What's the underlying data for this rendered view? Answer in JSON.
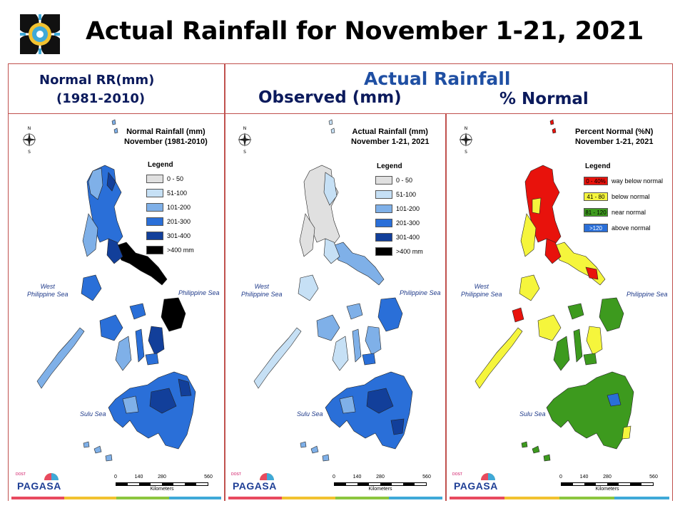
{
  "title": "Actual Rainfall for November 1-21, 2021",
  "header": {
    "normal_line1": "Normal RR(mm)",
    "normal_line2": "(1981-2010)",
    "actual": "Actual Rainfall",
    "observed": "Observed (mm)",
    "percent": "% Normal"
  },
  "panels": [
    {
      "title_line1": "Normal Rainfall (mm)",
      "title_line2": "November (1981-2010)",
      "legend_title": "Legend",
      "legend": [
        {
          "label": "0 - 50",
          "color": "#e0e0e0"
        },
        {
          "label": "51-100",
          "color": "#c6e0f5"
        },
        {
          "label": "101-200",
          "color": "#7fb0e8"
        },
        {
          "label": "201-300",
          "color": "#2a6fd8"
        },
        {
          "label": "301-400",
          "color": "#123f9a"
        },
        {
          "label": ">400 mm",
          "color": "#000000"
        }
      ],
      "sea_west_1": "West",
      "sea_west_2": "Philippine Sea",
      "sea_east": "Philippine Sea",
      "sea_south": "Sulu Sea"
    },
    {
      "title_line1": "Actual Rainfall (mm)",
      "title_line2": "November 1-21, 2021",
      "legend_title": "Legend",
      "legend": [
        {
          "label": "0 - 50",
          "color": "#e0e0e0"
        },
        {
          "label": "51-100",
          "color": "#c6e0f5"
        },
        {
          "label": "101-200",
          "color": "#7fb0e8"
        },
        {
          "label": "201-300",
          "color": "#2a6fd8"
        },
        {
          "label": "301-400",
          "color": "#123f9a"
        },
        {
          "label": ">400 mm",
          "color": "#000000"
        }
      ],
      "sea_west_1": "West",
      "sea_west_2": "Philippine Sea",
      "sea_east": "Philippine Sea",
      "sea_south": "Sulu Sea"
    },
    {
      "title_line1": "Percent Normal (%N)",
      "title_line2": "November 1-21, 2021",
      "legend_title": "Legend",
      "legend": [
        {
          "range": "0 - 40%",
          "label": "way below normal",
          "color": "#e8120c"
        },
        {
          "range": "41 - 80",
          "label": "below normal",
          "color": "#f5f53c"
        },
        {
          "range": "81 - 120",
          "label": "near normal",
          "color": "#3d9a1e"
        },
        {
          "range": ">120",
          "label": "above normal",
          "color": "#2a6fd8"
        }
      ],
      "sea_west_1": "West",
      "sea_west_2": "Philippine Sea",
      "sea_east": "Philippine Sea",
      "sea_south": "Sulu Sea"
    }
  ],
  "scale": {
    "ticks": [
      "0",
      "140",
      "280",
      "560"
    ],
    "unit": "Kilometers"
  },
  "branding": {
    "name": "PAGASA",
    "sub": "DOST"
  }
}
